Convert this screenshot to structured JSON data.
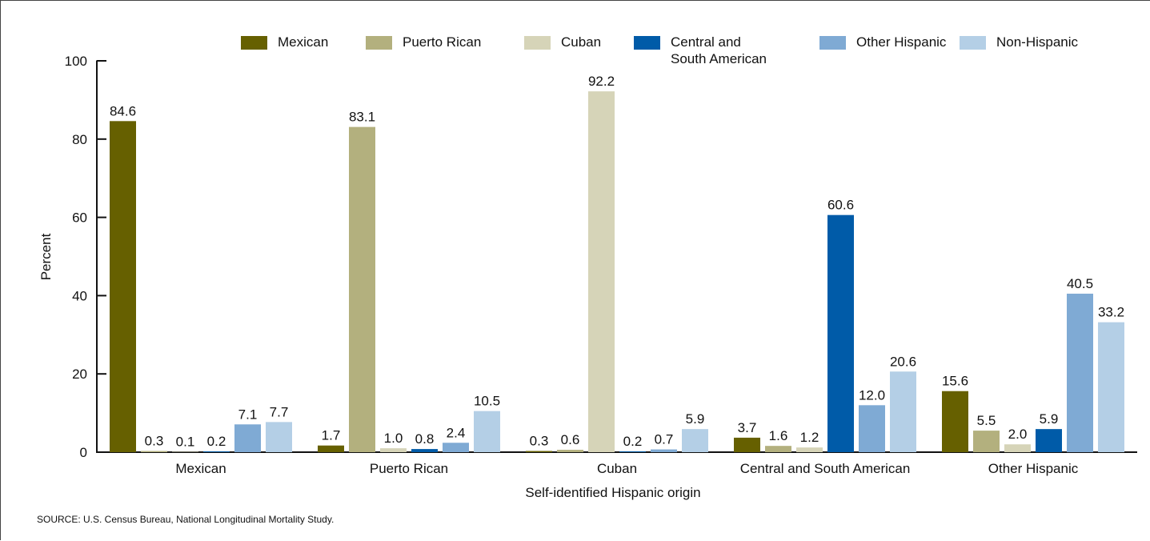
{
  "chart_data": {
    "type": "bar",
    "xlabel": "Self-identified Hispanic origin",
    "ylabel": "Percent",
    "ylim": [
      0,
      100
    ],
    "yticks": [
      "0",
      "20",
      "40",
      "60",
      "80",
      "100"
    ],
    "grid": false,
    "legend_position": "top",
    "categories": [
      "Mexican",
      "Puerto Rican",
      "Cuban",
      "Central and South American",
      "Other Hispanic"
    ],
    "series": [
      {
        "name": "Mexican",
        "label_lines": [
          "Mexican"
        ],
        "color": "#666000",
        "values": [
          84.6,
          1.7,
          0.3,
          3.7,
          15.6
        ],
        "labels": [
          "84.6",
          "1.7",
          "0.3",
          "3.7",
          "15.6"
        ]
      },
      {
        "name": "Puerto Rican",
        "label_lines": [
          "Puerto Rican"
        ],
        "color": "#B3B07E",
        "values": [
          0.3,
          83.1,
          0.6,
          1.6,
          5.5
        ],
        "labels": [
          "0.3",
          "83.1",
          "0.6",
          "1.6",
          "5.5"
        ]
      },
      {
        "name": "Cuban",
        "label_lines": [
          "Cuban"
        ],
        "color": "#D6D4B8",
        "values": [
          0.1,
          1.0,
          92.2,
          1.2,
          2.0
        ],
        "labels": [
          "0.1",
          "1.0",
          "92.2",
          "1.2",
          "2.0"
        ]
      },
      {
        "name": "Central and South American",
        "label_lines": [
          "Central and",
          "South American"
        ],
        "color": "#005BA8",
        "values": [
          0.2,
          0.8,
          0.2,
          60.6,
          5.9
        ],
        "labels": [
          "0.2",
          "0.8",
          "0.2",
          "60.6",
          "5.9"
        ]
      },
      {
        "name": "Other Hispanic",
        "label_lines": [
          "Other Hispanic"
        ],
        "color": "#7FAAD4",
        "values": [
          7.1,
          2.4,
          0.7,
          12.0,
          40.5
        ],
        "labels": [
          "7.1",
          "2.4",
          "0.7",
          "12.0",
          "40.5"
        ]
      },
      {
        "name": "Non-Hispanic",
        "label_lines": [
          "Non-Hispanic"
        ],
        "color": "#B4CFE6",
        "values": [
          7.7,
          10.5,
          5.9,
          20.6,
          33.2
        ],
        "labels": [
          "7.7",
          "10.5",
          "5.9",
          "20.6",
          "33.2"
        ]
      }
    ]
  },
  "footer": {
    "source": "SOURCE: U.S. Census Bureau, National Longitudinal Mortality Study."
  }
}
